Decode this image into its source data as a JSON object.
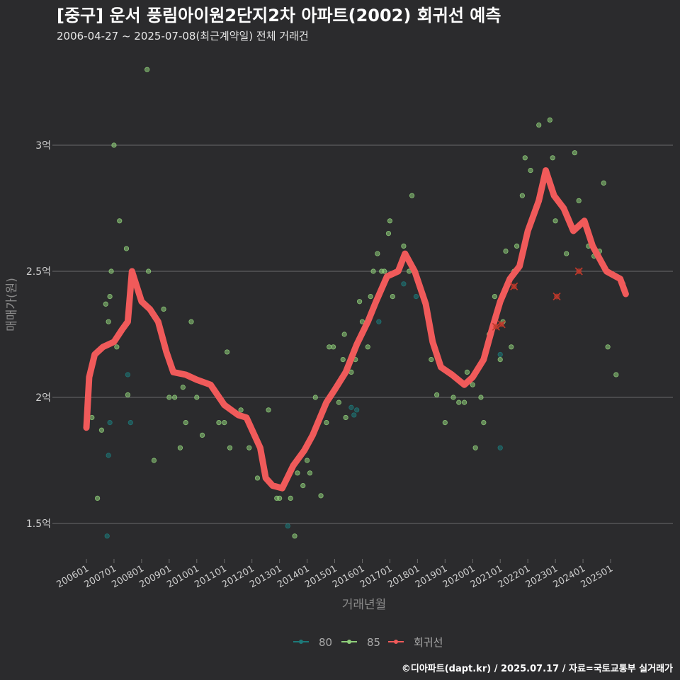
{
  "title": "[중구] 운서 풍림아이원2단지2차 아파트(2002) 회귀선 예측",
  "subtitle": "2006-04-27 ~ 2025-07-08(최근계약일) 전체 거래건",
  "caption": "©디아파트(dapt.kr) / 2025.07.17 / 자료=국토교통부 실거래가",
  "colors": {
    "background": "#2b2b2d",
    "grid": "#6a6a6a",
    "s80": "#1d7a7a",
    "s85": "#8fcf7a",
    "regression": "#f05a5a",
    "outlier": "#c0392b"
  },
  "chart_data": {
    "type": "scatter",
    "xlabel": "거래년월",
    "ylabel": "매매가(원)",
    "xlim": [
      2005.75,
      2026.2
    ],
    "ylim": [
      1.35,
      3.55
    ],
    "x_ticks": [
      {
        "label": "200601",
        "x": 2006.0
      },
      {
        "label": "200701",
        "x": 2007.0
      },
      {
        "label": "200801",
        "x": 2008.0
      },
      {
        "label": "200901",
        "x": 2009.0
      },
      {
        "label": "201001",
        "x": 2010.0
      },
      {
        "label": "201101",
        "x": 2011.0
      },
      {
        "label": "201201",
        "x": 2012.0
      },
      {
        "label": "201301",
        "x": 2013.0
      },
      {
        "label": "201401",
        "x": 2014.0
      },
      {
        "label": "201501",
        "x": 2015.0
      },
      {
        "label": "201601",
        "x": 2016.0
      },
      {
        "label": "201701",
        "x": 2017.0
      },
      {
        "label": "201801",
        "x": 2018.0
      },
      {
        "label": "201901",
        "x": 2019.0
      },
      {
        "label": "202001",
        "x": 2020.0
      },
      {
        "label": "202101",
        "x": 2021.0
      },
      {
        "label": "202201",
        "x": 2022.0
      },
      {
        "label": "202301",
        "x": 2023.0
      },
      {
        "label": "202401",
        "x": 2024.0
      },
      {
        "label": "202501",
        "x": 2025.0
      }
    ],
    "y_ticks": [
      {
        "label": "1.5억",
        "value": 1.5
      },
      {
        "label": "2억",
        "value": 2.0
      },
      {
        "label": "2.5억",
        "value": 2.5
      },
      {
        "label": "3억",
        "value": 3.0
      }
    ],
    "legend": [
      {
        "name": "80",
        "key": "s80"
      },
      {
        "name": "85",
        "key": "s85"
      },
      {
        "name": "회귀선",
        "key": "regression"
      }
    ],
    "series": [
      {
        "name": "80",
        "points": [
          [
            2006.75,
            1.45
          ],
          [
            2006.8,
            1.77
          ],
          [
            2006.85,
            1.9
          ],
          [
            2007.5,
            2.09
          ],
          [
            2007.6,
            1.9
          ],
          [
            2013.3,
            1.49
          ],
          [
            2015.6,
            1.96
          ],
          [
            2015.7,
            1.93
          ],
          [
            2015.8,
            1.95
          ],
          [
            2016.6,
            2.3
          ],
          [
            2017.5,
            2.45
          ],
          [
            2017.95,
            2.4
          ],
          [
            2021.0,
            1.8
          ],
          [
            2021.0,
            2.17
          ]
        ]
      },
      {
        "name": "85",
        "points": [
          [
            2006.2,
            1.92
          ],
          [
            2006.4,
            1.6
          ],
          [
            2006.55,
            1.87
          ],
          [
            2006.7,
            2.37
          ],
          [
            2006.8,
            2.3
          ],
          [
            2006.85,
            2.4
          ],
          [
            2006.9,
            2.5
          ],
          [
            2007.0,
            3.0
          ],
          [
            2007.1,
            2.2
          ],
          [
            2007.2,
            2.7
          ],
          [
            2007.45,
            2.59
          ],
          [
            2007.5,
            2.01
          ],
          [
            2007.6,
            2.45
          ],
          [
            2008.2,
            3.3
          ],
          [
            2008.25,
            2.5
          ],
          [
            2008.45,
            1.75
          ],
          [
            2008.8,
            2.35
          ],
          [
            2009.0,
            2.0
          ],
          [
            2009.2,
            2.0
          ],
          [
            2009.4,
            1.8
          ],
          [
            2009.5,
            2.04
          ],
          [
            2009.6,
            1.9
          ],
          [
            2009.8,
            2.3
          ],
          [
            2010.0,
            2.0
          ],
          [
            2010.2,
            1.85
          ],
          [
            2010.8,
            1.9
          ],
          [
            2011.0,
            1.9
          ],
          [
            2011.1,
            2.18
          ],
          [
            2011.2,
            1.8
          ],
          [
            2011.6,
            1.95
          ],
          [
            2011.9,
            1.8
          ],
          [
            2012.2,
            1.68
          ],
          [
            2012.6,
            1.95
          ],
          [
            2012.9,
            1.6
          ],
          [
            2013.0,
            1.6
          ],
          [
            2013.4,
            1.6
          ],
          [
            2013.55,
            1.45
          ],
          [
            2013.65,
            1.7
          ],
          [
            2013.85,
            1.65
          ],
          [
            2014.0,
            1.75
          ],
          [
            2014.1,
            1.7
          ],
          [
            2014.3,
            2.0
          ],
          [
            2014.5,
            1.61
          ],
          [
            2014.7,
            1.9
          ],
          [
            2014.8,
            2.2
          ],
          [
            2014.95,
            2.2
          ],
          [
            2015.15,
            1.98
          ],
          [
            2015.3,
            2.15
          ],
          [
            2015.35,
            2.25
          ],
          [
            2015.4,
            1.92
          ],
          [
            2015.6,
            2.1
          ],
          [
            2015.75,
            2.15
          ],
          [
            2015.9,
            2.38
          ],
          [
            2016.0,
            2.3
          ],
          [
            2016.2,
            2.2
          ],
          [
            2016.3,
            2.4
          ],
          [
            2016.4,
            2.5
          ],
          [
            2016.55,
            2.57
          ],
          [
            2016.7,
            2.5
          ],
          [
            2016.8,
            2.5
          ],
          [
            2016.95,
            2.65
          ],
          [
            2017.0,
            2.7
          ],
          [
            2017.1,
            2.4
          ],
          [
            2017.5,
            2.6
          ],
          [
            2017.7,
            2.5
          ],
          [
            2017.8,
            2.8
          ],
          [
            2018.5,
            2.15
          ],
          [
            2018.7,
            2.01
          ],
          [
            2019.0,
            1.9
          ],
          [
            2019.3,
            2.0
          ],
          [
            2019.5,
            1.98
          ],
          [
            2019.7,
            1.98
          ],
          [
            2019.8,
            2.1
          ],
          [
            2020.0,
            2.05
          ],
          [
            2020.1,
            1.8
          ],
          [
            2020.3,
            2.0
          ],
          [
            2020.4,
            1.9
          ],
          [
            2020.6,
            2.25
          ],
          [
            2020.8,
            2.4
          ],
          [
            2021.0,
            2.15
          ],
          [
            2021.1,
            2.3
          ],
          [
            2021.2,
            2.58
          ],
          [
            2021.4,
            2.2
          ],
          [
            2021.5,
            2.5
          ],
          [
            2021.6,
            2.6
          ],
          [
            2021.8,
            2.8
          ],
          [
            2021.9,
            2.95
          ],
          [
            2022.1,
            2.9
          ],
          [
            2022.4,
            3.08
          ],
          [
            2022.8,
            3.1
          ],
          [
            2022.9,
            2.95
          ],
          [
            2023.0,
            2.7
          ],
          [
            2023.4,
            2.57
          ],
          [
            2023.7,
            2.97
          ],
          [
            2023.85,
            2.78
          ],
          [
            2024.2,
            2.6
          ],
          [
            2024.4,
            2.56
          ],
          [
            2024.6,
            2.58
          ],
          [
            2024.75,
            2.85
          ],
          [
            2024.9,
            2.2
          ],
          [
            2025.2,
            2.09
          ],
          [
            2025.45,
            2.45
          ]
        ]
      }
    ],
    "regression": [
      [
        2006.0,
        1.88
      ],
      [
        2006.1,
        2.08
      ],
      [
        2006.3,
        2.17
      ],
      [
        2006.6,
        2.2
      ],
      [
        2007.0,
        2.22
      ],
      [
        2007.3,
        2.27
      ],
      [
        2007.5,
        2.3
      ],
      [
        2007.65,
        2.5
      ],
      [
        2008.0,
        2.38
      ],
      [
        2008.3,
        2.35
      ],
      [
        2008.6,
        2.3
      ],
      [
        2008.9,
        2.18
      ],
      [
        2009.15,
        2.1
      ],
      [
        2009.6,
        2.09
      ],
      [
        2010.0,
        2.07
      ],
      [
        2010.5,
        2.05
      ],
      [
        2011.0,
        1.97
      ],
      [
        2011.5,
        1.93
      ],
      [
        2011.8,
        1.92
      ],
      [
        2012.3,
        1.8
      ],
      [
        2012.5,
        1.68
      ],
      [
        2012.75,
        1.65
      ],
      [
        2013.1,
        1.64
      ],
      [
        2013.5,
        1.73
      ],
      [
        2013.9,
        1.79
      ],
      [
        2014.2,
        1.85
      ],
      [
        2014.7,
        1.98
      ],
      [
        2015.0,
        2.03
      ],
      [
        2015.4,
        2.1
      ],
      [
        2015.8,
        2.21
      ],
      [
        2016.2,
        2.3
      ],
      [
        2016.5,
        2.38
      ],
      [
        2016.9,
        2.48
      ],
      [
        2017.3,
        2.5
      ],
      [
        2017.55,
        2.57
      ],
      [
        2017.9,
        2.5
      ],
      [
        2018.3,
        2.37
      ],
      [
        2018.55,
        2.22
      ],
      [
        2018.85,
        2.12
      ],
      [
        2019.25,
        2.09
      ],
      [
        2019.7,
        2.05
      ],
      [
        2020.0,
        2.08
      ],
      [
        2020.4,
        2.15
      ],
      [
        2020.7,
        2.27
      ],
      [
        2021.0,
        2.38
      ],
      [
        2021.35,
        2.47
      ],
      [
        2021.7,
        2.52
      ],
      [
        2022.0,
        2.66
      ],
      [
        2022.4,
        2.78
      ],
      [
        2022.65,
        2.9
      ],
      [
        2022.95,
        2.8
      ],
      [
        2023.3,
        2.75
      ],
      [
        2023.65,
        2.66
      ],
      [
        2024.05,
        2.7
      ],
      [
        2024.35,
        2.6
      ],
      [
        2024.85,
        2.5
      ],
      [
        2025.35,
        2.47
      ],
      [
        2025.55,
        2.41
      ]
    ],
    "outliers": [
      [
        2020.85,
        2.28
      ],
      [
        2021.05,
        2.29
      ],
      [
        2021.5,
        2.44
      ],
      [
        2023.05,
        2.4
      ],
      [
        2023.85,
        2.5
      ]
    ]
  }
}
